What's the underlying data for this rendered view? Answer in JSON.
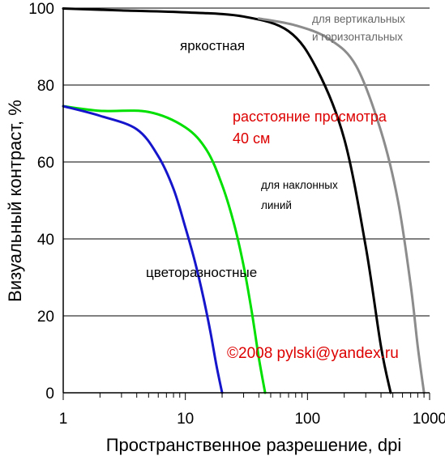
{
  "chart_data": {
    "type": "line",
    "xscale": "log",
    "xlim": [
      1,
      1000
    ],
    "ylim": [
      0,
      100
    ],
    "grid": "horizontal",
    "xlabel": "Пространственное разрешение, dpi",
    "ylabel": "Визуальный контраст, %",
    "xticks": [
      {
        "value": 1,
        "label": "1"
      },
      {
        "value": 10,
        "label": "10"
      },
      {
        "value": 100,
        "label": "100"
      },
      {
        "value": 1000,
        "label": "1000"
      }
    ],
    "yticks": [
      {
        "value": 0,
        "label": "0"
      },
      {
        "value": 20,
        "label": "20"
      },
      {
        "value": 40,
        "label": "40"
      },
      {
        "value": 60,
        "label": "60"
      },
      {
        "value": 80,
        "label": "80"
      },
      {
        "value": 100,
        "label": "100"
      }
    ],
    "series": [
      {
        "id": "luminance-oblique",
        "color": "#000000",
        "x": [
          1,
          3,
          10,
          30,
          70,
          120,
          200,
          300,
          400,
          480
        ],
        "y": [
          99.9,
          99.4,
          98.9,
          97.8,
          94,
          84,
          66,
          38,
          12,
          0
        ]
      },
      {
        "id": "luminance-vh",
        "color": "#8c8c8c",
        "x": [
          40,
          80,
          150,
          250,
          400,
          550,
          700,
          800,
          900
        ],
        "y": [
          97.3,
          95.5,
          92,
          85,
          68,
          50,
          28,
          12,
          0
        ]
      },
      {
        "id": "color-vh",
        "color": "#00e000",
        "x": [
          1,
          2,
          5,
          10,
          15,
          20,
          25,
          30,
          35,
          40,
          45
        ],
        "y": [
          74.5,
          73.3,
          73,
          69,
          63,
          54,
          44,
          33,
          21,
          9,
          0
        ]
      },
      {
        "id": "color-oblique",
        "color": "#1515cc",
        "x": [
          1,
          2,
          4,
          6,
          8,
          10,
          12,
          14,
          16,
          18,
          20
        ],
        "y": [
          74.5,
          72,
          68.5,
          61.5,
          53,
          43,
          34,
          25,
          16,
          7,
          0
        ]
      }
    ],
    "annotations": [
      {
        "id": "luminance-label",
        "text": "яркостная",
        "color": "#000000"
      },
      {
        "id": "vh-label-line1",
        "text": "для вертикальных",
        "color": "#666666"
      },
      {
        "id": "vh-label-line2",
        "text": "и горизонтальных",
        "color": "#666666"
      },
      {
        "id": "distance-line1",
        "text": "расстояние просмотра",
        "color": "#dd0000"
      },
      {
        "id": "distance-line2",
        "text": "40 см",
        "color": "#dd0000"
      },
      {
        "id": "oblique-label-line1",
        "text": "для наклонных",
        "color": "#000000"
      },
      {
        "id": "oblique-label-line2",
        "text": "линий",
        "color": "#000000"
      },
      {
        "id": "color-label",
        "text": "цветоразностные",
        "color": "#000000"
      },
      {
        "id": "copyright",
        "text": "©2008 pylski@yandex.ru",
        "color": "#dd0000"
      }
    ]
  }
}
